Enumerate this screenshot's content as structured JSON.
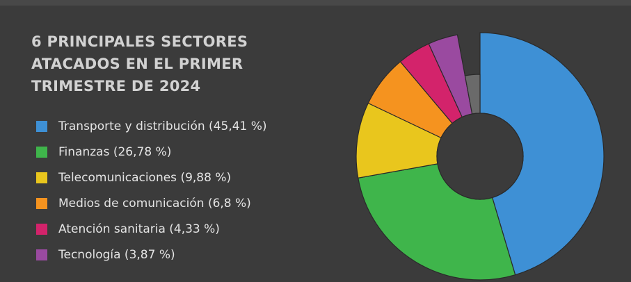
{
  "chart_data": {
    "type": "donut",
    "title": "6 PRINCIPALES SECTORES ATACADOS EN EL PRIMER TRIMESTRE DE 2024",
    "categories": [
      "Transporte y distribución (45,41 %)",
      "Finanzas (26,78 %)",
      "Telecomunicaciones (9,88 %)",
      "Medios de comunicación (6,8 %)",
      "Atención sanitaria (4,33 %)",
      "Tecnología (3,87 %)",
      null
    ],
    "values": [
      45.41,
      26.78,
      9.88,
      6.8,
      4.33,
      3.87,
      2.93
    ],
    "colors": [
      "#3e90d5",
      "#3fb54b",
      "#e9c61d",
      "#f5931f",
      "#d3236b",
      "#9a4aa0",
      "#6a6a6a"
    ]
  }
}
